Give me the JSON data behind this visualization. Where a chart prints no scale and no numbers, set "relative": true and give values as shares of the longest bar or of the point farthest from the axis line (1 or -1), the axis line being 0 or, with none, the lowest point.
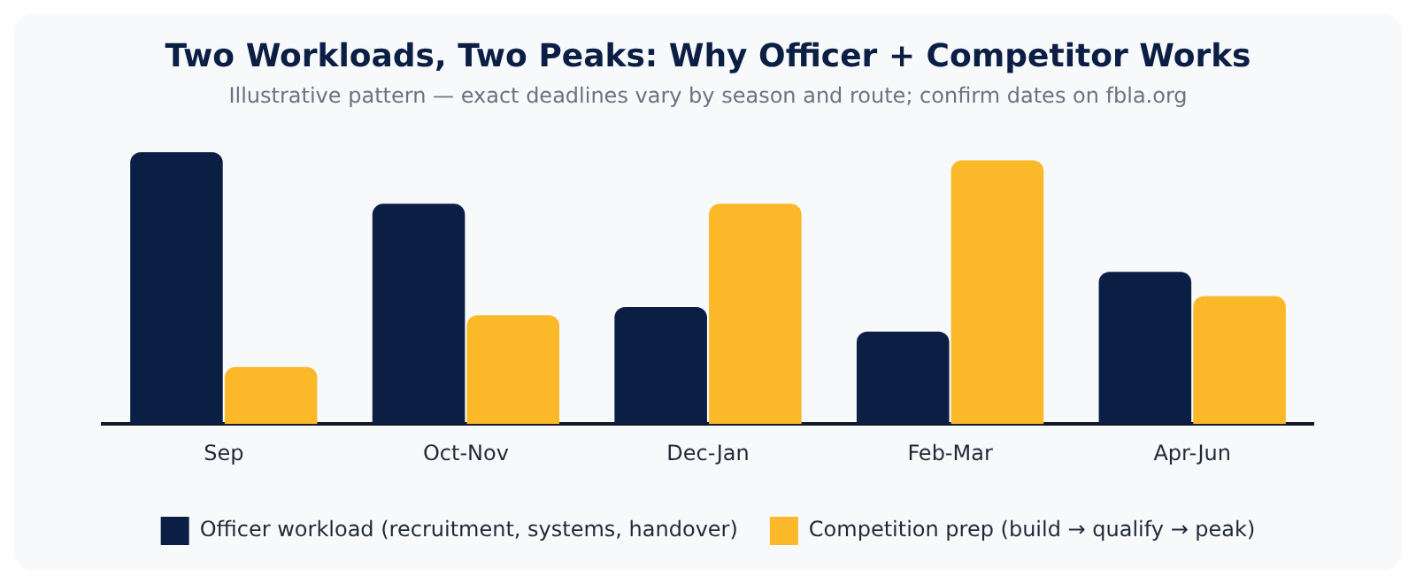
{
  "chart_data": {
    "type": "bar",
    "title": "Two Workloads, Two Peaks: Why Officer + Competitor Works",
    "subtitle": "Illustrative pattern — exact deadlines vary by season and route; confirm dates on fbla.org",
    "categories": [
      "Sep",
      "Oct-Nov",
      "Dec-Jan",
      "Feb-Mar",
      "Apr-Jun"
    ],
    "relative": true,
    "grid": false,
    "legend": "bottom",
    "series": [
      {
        "name": "Officer workload (recruitment, systems, handover)",
        "color": "#0b1f45",
        "values": [
          1,
          0.81,
          0.43,
          0.34,
          0.56
        ]
      },
      {
        "name": "Competition prep (build → qualify → peak)",
        "color": "#fbb829",
        "values": [
          0.21,
          0.4,
          0.81,
          0.97,
          0.47
        ]
      }
    ]
  }
}
